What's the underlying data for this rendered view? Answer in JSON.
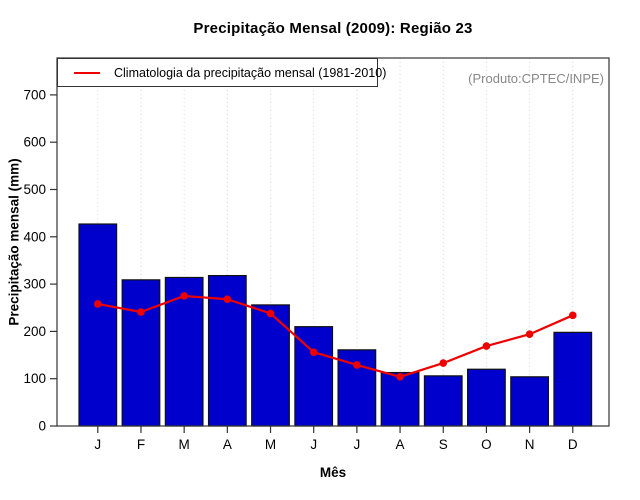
{
  "title": "Precipitação Mensal (2009): Região 23",
  "watermark": "(Produto:CPTEC/INPE)",
  "legend": {
    "label": "Climatologia da precipitação mensal (1981-2010)",
    "line_color": "#ee0000"
  },
  "chart_data": {
    "type": "bar",
    "title": "Precipitação Mensal (2009): Região 23",
    "xlabel": "Mês",
    "ylabel": "Precipitação mensal (mm)",
    "categories": [
      "J",
      "F",
      "M",
      "A",
      "M",
      "J",
      "J",
      "A",
      "S",
      "O",
      "N",
      "D"
    ],
    "series": [
      {
        "name": "Precipitação mensal 2009",
        "type": "bar",
        "color": "#0000cd",
        "values": [
          427,
          309,
          314,
          318,
          256,
          210,
          161,
          113,
          106,
          120,
          104,
          198
        ]
      },
      {
        "name": "Climatologia da precipitação mensal (1981-2010)",
        "type": "line",
        "color": "#ee0000",
        "values": [
          258,
          241,
          275,
          268,
          238,
          156,
          129,
          104,
          133,
          169,
          194,
          234
        ]
      }
    ],
    "yticks": [
      0,
      100,
      200,
      300,
      400,
      500,
      600,
      700
    ],
    "ylim": [
      0,
      778
    ],
    "grid": "vertical-dotted",
    "grid_color": "#d8d8d8",
    "box_color": "#333333",
    "legend_position": "top-left"
  }
}
